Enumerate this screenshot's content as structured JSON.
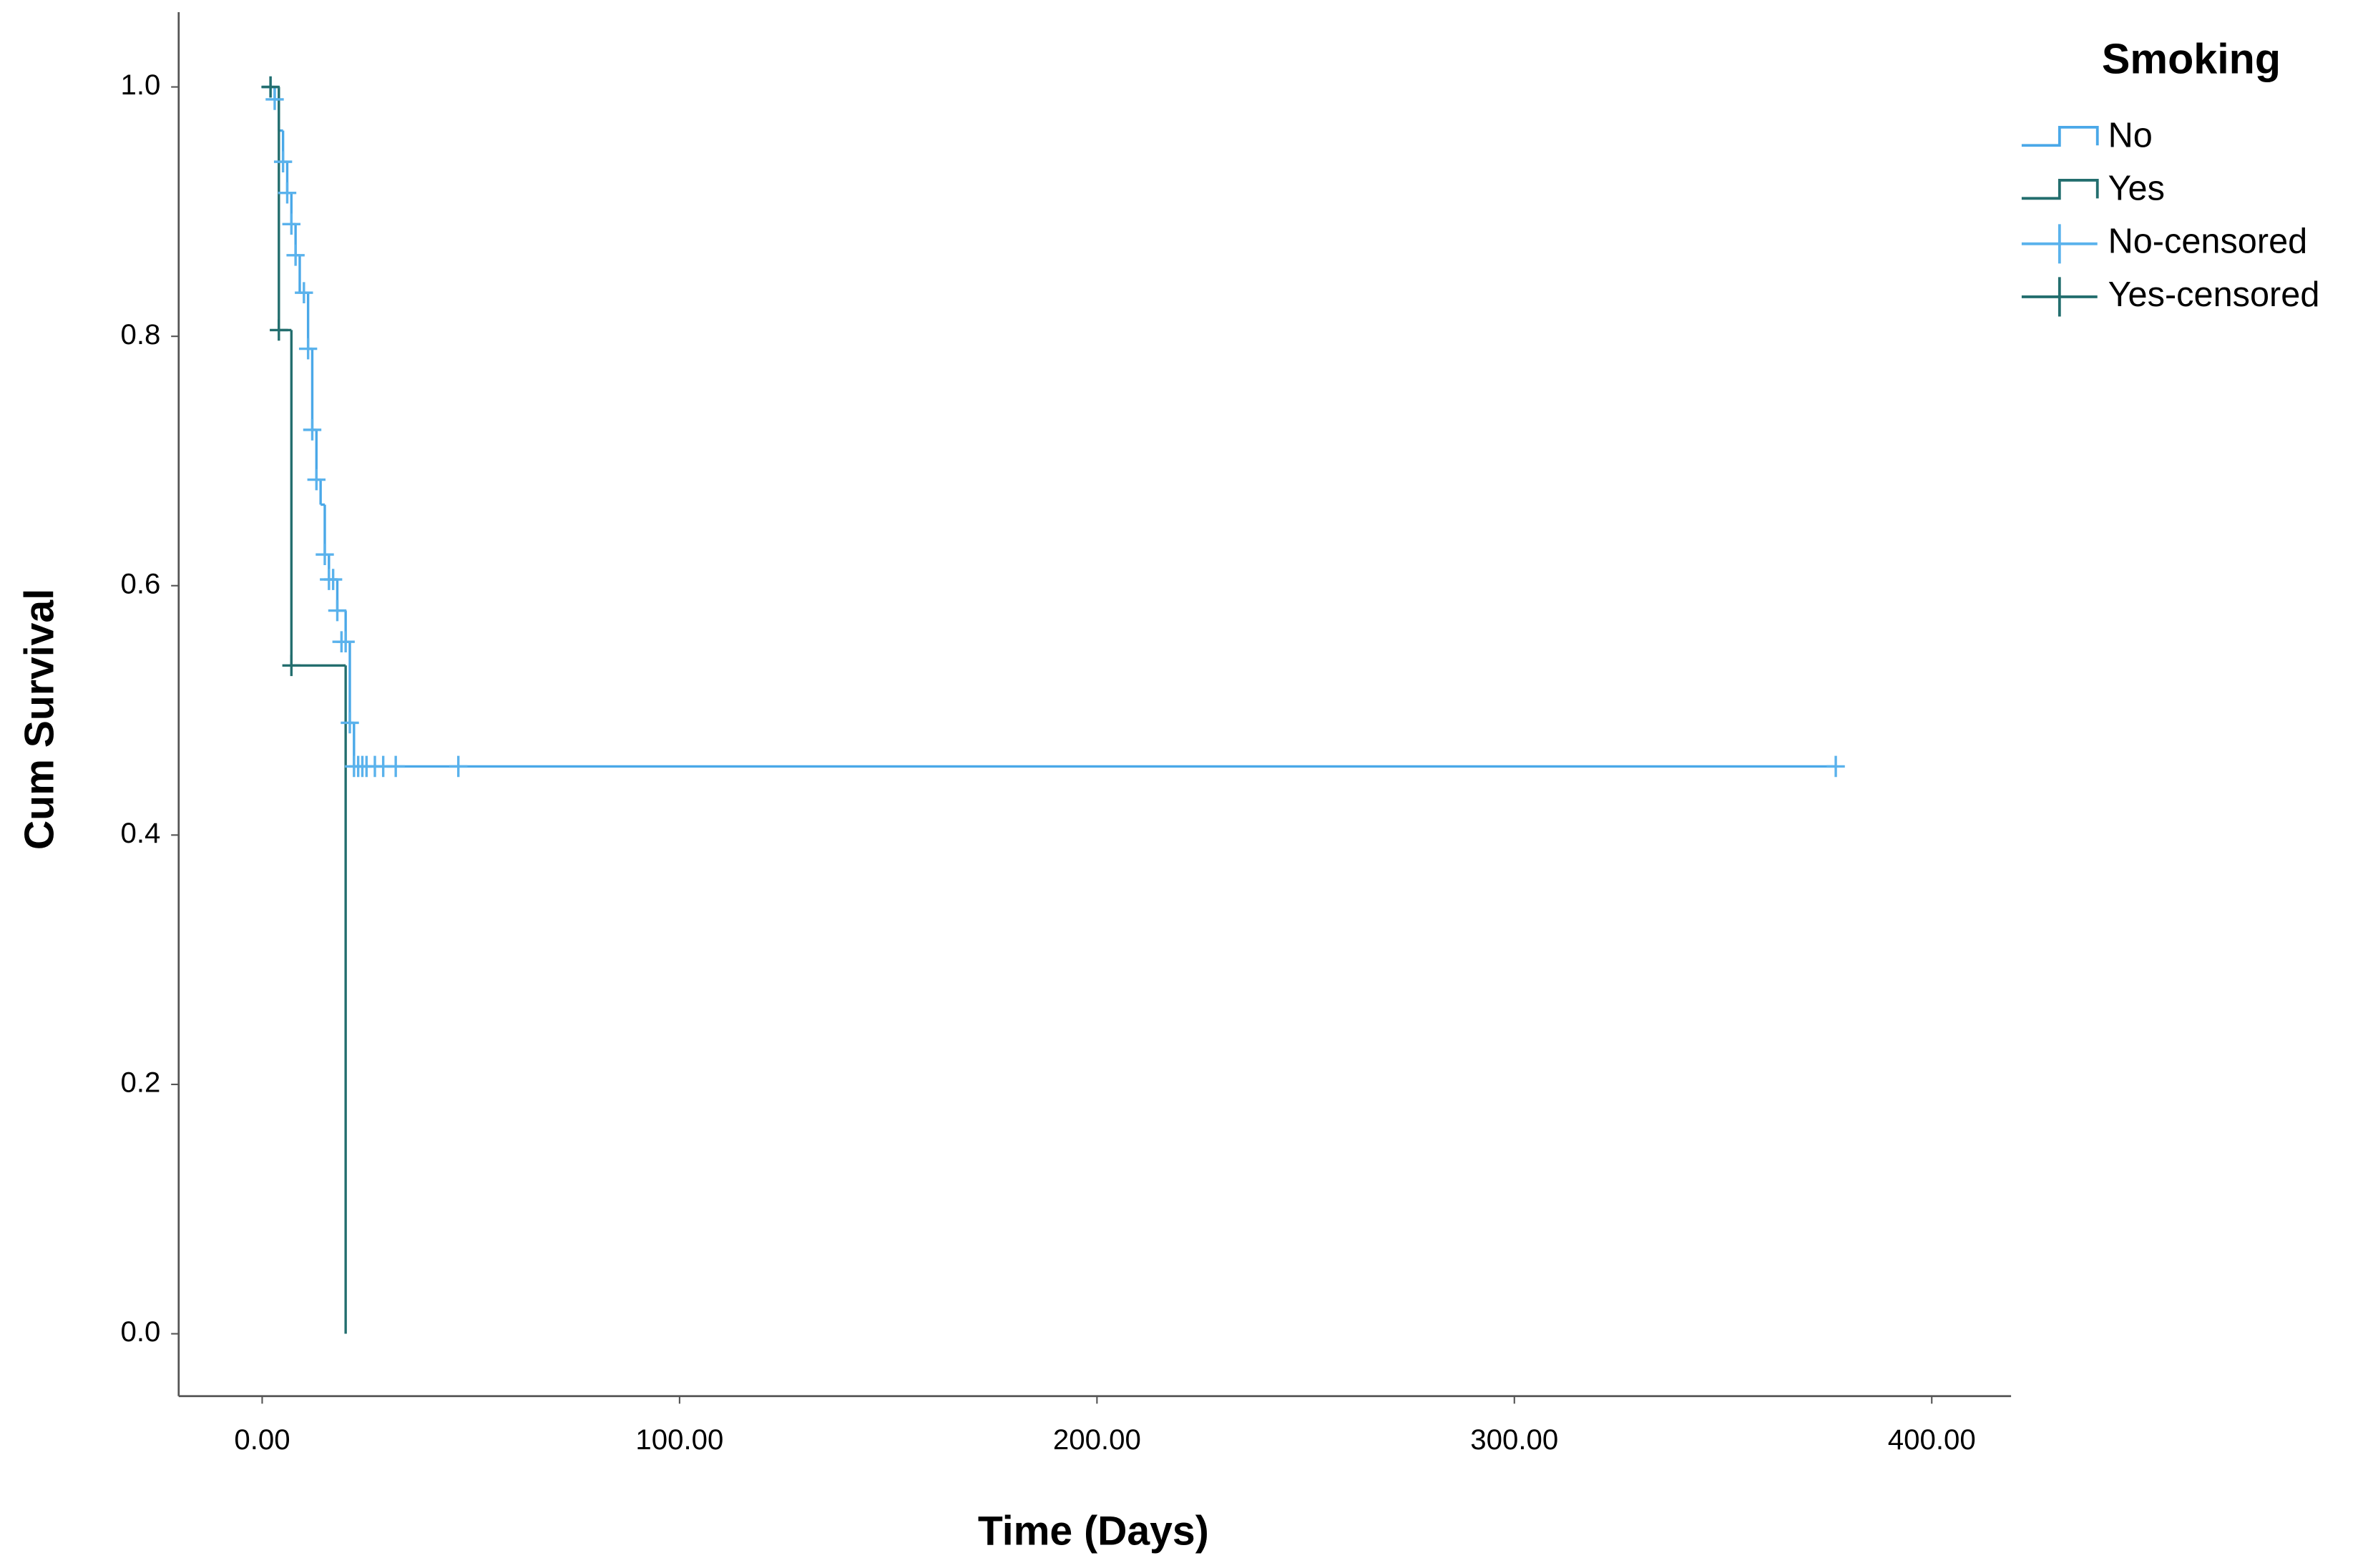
{
  "chart_data": {
    "type": "survival",
    "x_label": "Time (Days)",
    "y_label": "Cum Survival",
    "legend_title": "Smoking",
    "legend_position": "right",
    "xlim": [
      -20,
      419
    ],
    "ylim": [
      -0.05,
      1.06
    ],
    "xticks": [
      {
        "value": 0,
        "label": "0.00"
      },
      {
        "value": 100,
        "label": "100.00"
      },
      {
        "value": 200,
        "label": "200.00"
      },
      {
        "value": 300,
        "label": "300.00"
      },
      {
        "value": 400,
        "label": "400.00"
      }
    ],
    "yticks": [
      {
        "value": 0,
        "label": "0.0"
      },
      0.2,
      0.4,
      0.6,
      0.8,
      {
        "value": 1,
        "label": "1.0"
      }
    ],
    "series": [
      {
        "name": "No",
        "kind": "step",
        "color": "#4aa8e8",
        "x": [
          0,
          3,
          4,
          5,
          6,
          7,
          8,
          9,
          11,
          12,
          13,
          14,
          15,
          16,
          18,
          20,
          21,
          22,
          377
        ],
        "values": [
          1.0,
          0.99,
          0.965,
          0.94,
          0.915,
          0.89,
          0.865,
          0.835,
          0.79,
          0.725,
          0.685,
          0.665,
          0.625,
          0.605,
          0.58,
          0.555,
          0.49,
          0.455,
          0.455
        ]
      },
      {
        "name": "Yes",
        "kind": "step",
        "color": "#236e6e",
        "x": [
          0,
          4,
          7,
          20
        ],
        "values": [
          1.0,
          0.805,
          0.536,
          0.0
        ]
      },
      {
        "name": "No-censored",
        "kind": "censored",
        "color": "#5ab2ec",
        "x": [
          2,
          3,
          5,
          6,
          7,
          8,
          10,
          11,
          12,
          13,
          15,
          16,
          17,
          18,
          19,
          20,
          21,
          22,
          23,
          24,
          25,
          27,
          29,
          32,
          47,
          377
        ],
        "values": [
          1.0,
          0.99,
          0.94,
          0.915,
          0.89,
          0.865,
          0.835,
          0.79,
          0.725,
          0.685,
          0.625,
          0.605,
          0.605,
          0.58,
          0.555,
          0.555,
          0.49,
          0.455,
          0.455,
          0.455,
          0.455,
          0.455,
          0.455,
          0.455,
          0.455,
          0.455
        ]
      },
      {
        "name": "Yes-censored",
        "kind": "censored",
        "color": "#236e6e",
        "x": [
          2,
          4,
          7
        ],
        "values": [
          1.0,
          0.805,
          0.536
        ]
      }
    ]
  }
}
